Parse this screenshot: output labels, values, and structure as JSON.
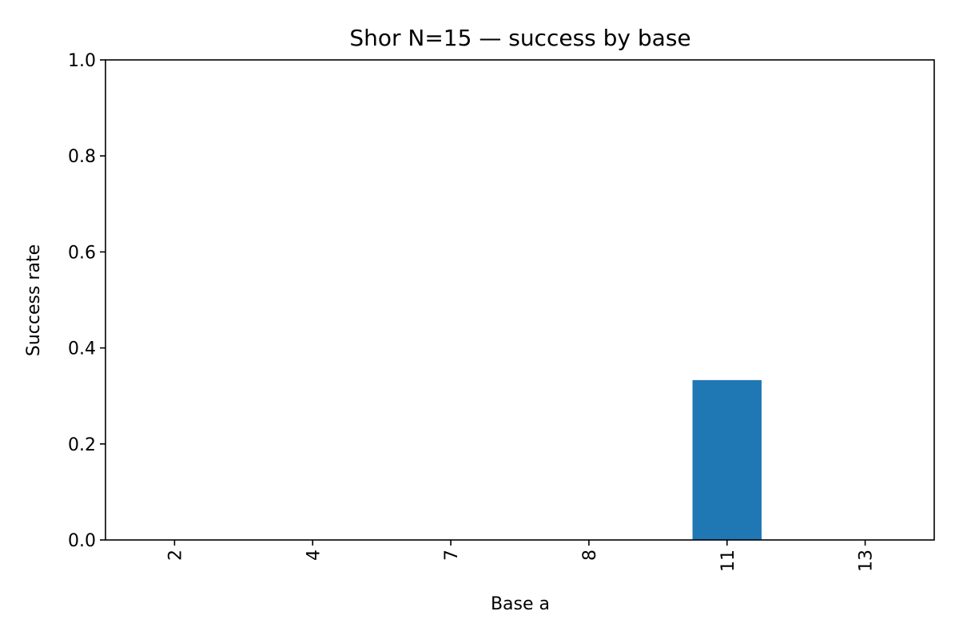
{
  "chart_data": {
    "type": "bar",
    "title": "Shor N=15 — success by base",
    "xlabel": "Base a",
    "ylabel": "Success rate",
    "categories": [
      "2",
      "4",
      "7",
      "8",
      "11",
      "13"
    ],
    "values": [
      0.0,
      0.0,
      0.0,
      0.0,
      0.333,
      0.0
    ],
    "ylim": [
      0,
      1.0
    ],
    "yticks": [
      "0.0",
      "0.2",
      "0.4",
      "0.6",
      "0.8",
      "1.0"
    ],
    "grid": false,
    "bar_color": "#1f77b4",
    "xtick_rotation": "vertical"
  }
}
